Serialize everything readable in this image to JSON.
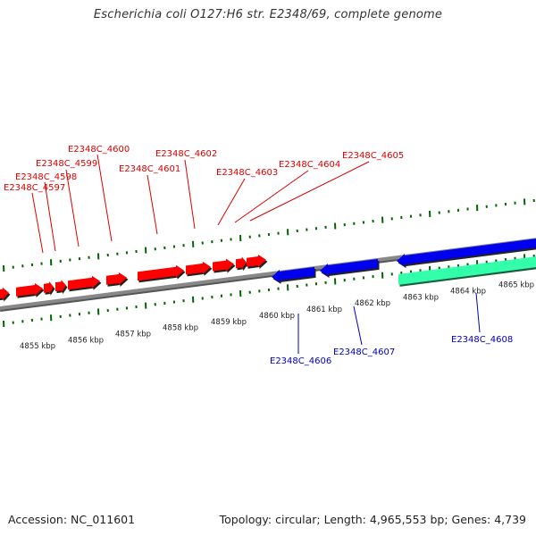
{
  "title": "Escherichia coli O127:H6 str. E2348/69, complete genome",
  "footer": {
    "accession": "Accession: NC_011601",
    "stats": "Topology: circular; Length: 4,965,553 bp; Genes: 4,739"
  },
  "colors": {
    "forward_gene": "#ff0000",
    "reverse_gene": "#0000ee",
    "cds_feature": "#33ffaa",
    "forward_label": "#dd0000",
    "reverse_label": "#0000bb",
    "ticks": "#006600",
    "backbone": "#888888"
  },
  "tick_labels": [
    "4855 kbp",
    "4856 kbp",
    "4857 kbp",
    "4858 kbp",
    "4859 kbp",
    "4860 kbp",
    "4861 kbp",
    "4862 kbp",
    "4863 kbp",
    "4864 kbp",
    "4865 kbp"
  ],
  "forward_genes": [
    "E2348C_4597",
    "E2348C_4598",
    "E2348C_4599",
    "E2348C_4600",
    "E2348C_4601",
    "E2348C_4602",
    "E2348C_4603",
    "E2348C_4604",
    "E2348C_4605"
  ],
  "reverse_genes": [
    "E2348C_4606",
    "E2348C_4607",
    "E2348C_4608"
  ]
}
